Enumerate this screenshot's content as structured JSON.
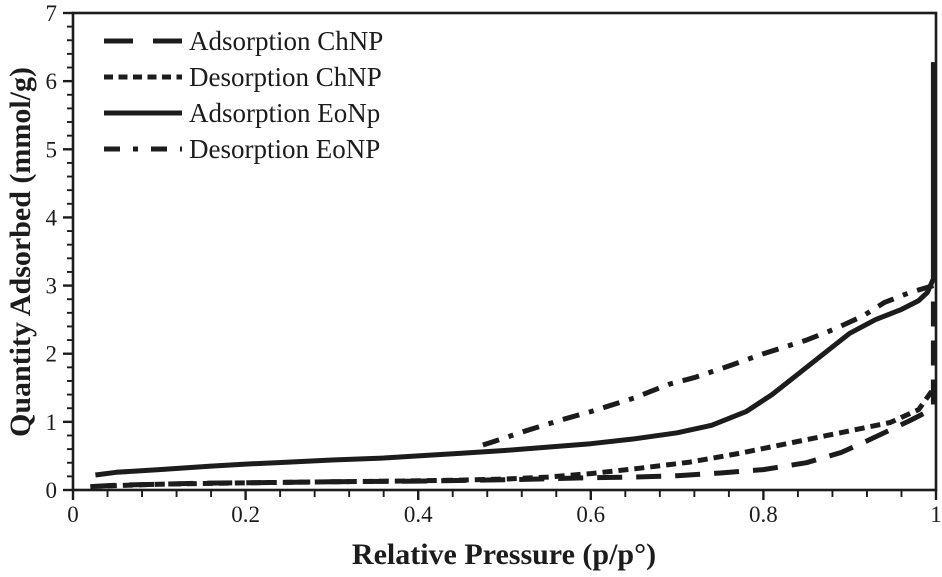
{
  "chart_data": {
    "type": "line",
    "title": "",
    "xlabel": "Relative Pressure (p/p°)",
    "ylabel": "Quantity Adsorbed (mmol/g)",
    "xlim": [
      0,
      1
    ],
    "ylim": [
      0,
      7
    ],
    "x_major_ticks": [
      0,
      0.2,
      0.4,
      0.6,
      0.8,
      1
    ],
    "x_tick_labels": [
      "0",
      "0.2",
      "0.4",
      "0.6",
      "0.8",
      "1"
    ],
    "x_minor_step": 0.04,
    "y_major_ticks": [
      0,
      1,
      2,
      3,
      4,
      5,
      6,
      7
    ],
    "y_tick_labels": [
      "0",
      "1",
      "2",
      "3",
      "4",
      "5",
      "6",
      "7"
    ],
    "y_minor_step": 0.2,
    "grid": false,
    "legend_position": "top-left",
    "line_color": "#1c1c1c",
    "series": [
      {
        "name": "Adsorption ChNP",
        "dash": "long-dash",
        "points": [
          [
            0.02,
            0.05
          ],
          [
            0.05,
            0.07
          ],
          [
            0.1,
            0.085
          ],
          [
            0.15,
            0.1
          ],
          [
            0.2,
            0.105
          ],
          [
            0.3,
            0.12
          ],
          [
            0.4,
            0.13
          ],
          [
            0.5,
            0.15
          ],
          [
            0.55,
            0.165
          ],
          [
            0.6,
            0.18
          ],
          [
            0.65,
            0.19
          ],
          [
            0.7,
            0.21
          ],
          [
            0.75,
            0.25
          ],
          [
            0.8,
            0.3
          ],
          [
            0.85,
            0.4
          ],
          [
            0.89,
            0.55
          ],
          [
            0.92,
            0.72
          ],
          [
            0.95,
            0.9
          ],
          [
            0.97,
            1.02
          ],
          [
            0.99,
            1.15
          ],
          [
            0.997,
            1.25
          ],
          [
            0.997,
            2.97
          ]
        ]
      },
      {
        "name": "Desorption ChNP",
        "dash": "short-dash",
        "points": [
          [
            0.995,
            1.45
          ],
          [
            0.98,
            1.18
          ],
          [
            0.947,
            0.99
          ],
          [
            0.889,
            0.84
          ],
          [
            0.831,
            0.69
          ],
          [
            0.773,
            0.54
          ],
          [
            0.715,
            0.41
          ],
          [
            0.657,
            0.32
          ],
          [
            0.6,
            0.24
          ],
          [
            0.55,
            0.19
          ],
          [
            0.5,
            0.16
          ],
          [
            0.45,
            0.145
          ],
          [
            0.4,
            0.135
          ],
          [
            0.3,
            0.12
          ],
          [
            0.2,
            0.105
          ],
          [
            0.1,
            0.085
          ],
          [
            0.04,
            0.06
          ]
        ]
      },
      {
        "name": "Adsorption EoNp",
        "dash": "solid",
        "points": [
          [
            0.026,
            0.22
          ],
          [
            0.05,
            0.26
          ],
          [
            0.1,
            0.3
          ],
          [
            0.16,
            0.35
          ],
          [
            0.2,
            0.38
          ],
          [
            0.25,
            0.41
          ],
          [
            0.3,
            0.44
          ],
          [
            0.36,
            0.47
          ],
          [
            0.4,
            0.5
          ],
          [
            0.45,
            0.54
          ],
          [
            0.5,
            0.58
          ],
          [
            0.55,
            0.63
          ],
          [
            0.6,
            0.68
          ],
          [
            0.65,
            0.75
          ],
          [
            0.7,
            0.84
          ],
          [
            0.74,
            0.95
          ],
          [
            0.78,
            1.15
          ],
          [
            0.81,
            1.4
          ],
          [
            0.84,
            1.7
          ],
          [
            0.87,
            2.0
          ],
          [
            0.9,
            2.3
          ],
          [
            0.93,
            2.5
          ],
          [
            0.96,
            2.65
          ],
          [
            0.98,
            2.78
          ],
          [
            0.99,
            2.9
          ],
          [
            0.997,
            3.1
          ],
          [
            0.997,
            6.28
          ]
        ]
      },
      {
        "name": "Desorption EoNP",
        "dash": "dash-dot",
        "points": [
          [
            0.997,
            3.0
          ],
          [
            0.97,
            2.9
          ],
          [
            0.94,
            2.75
          ],
          [
            0.915,
            2.55
          ],
          [
            0.88,
            2.35
          ],
          [
            0.85,
            2.2
          ],
          [
            0.8,
            2.0
          ],
          [
            0.76,
            1.82
          ],
          [
            0.72,
            1.65
          ],
          [
            0.69,
            1.55
          ],
          [
            0.65,
            1.35
          ],
          [
            0.6,
            1.15
          ],
          [
            0.566,
            1.03
          ],
          [
            0.52,
            0.85
          ],
          [
            0.485,
            0.7
          ],
          [
            0.47,
            0.64
          ]
        ]
      }
    ]
  }
}
